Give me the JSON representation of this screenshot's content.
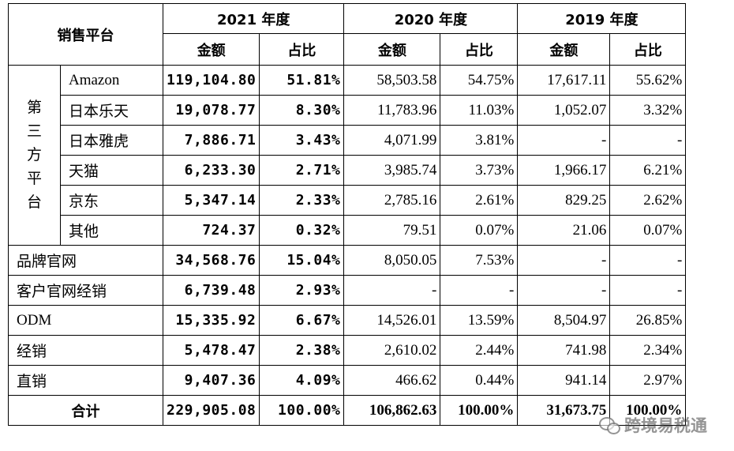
{
  "header": {
    "platform_label": "销售平台",
    "years": [
      "2021 年度",
      "2020 年度",
      "2019 年度"
    ],
    "amount_label": "金额",
    "ratio_label": "占比"
  },
  "third_party_group_label": "第三方平台",
  "rows": [
    {
      "name": "Amazon",
      "v2021": "119,104.80",
      "p2021": "51.81%",
      "v2020": "58,503.58",
      "p2020": "54.75%",
      "v2019": "17,617.11",
      "p2019": "55.62%"
    },
    {
      "name": "日本乐天",
      "v2021": "19,078.77",
      "p2021": "8.30%",
      "v2020": "11,783.96",
      "p2020": "11.03%",
      "v2019": "1,052.07",
      "p2019": "3.32%"
    },
    {
      "name": "日本雅虎",
      "v2021": "7,886.71",
      "p2021": "3.43%",
      "v2020": "4,071.99",
      "p2020": "3.81%",
      "v2019": "-",
      "p2019": "-"
    },
    {
      "name": "天猫",
      "v2021": "6,233.30",
      "p2021": "2.71%",
      "v2020": "3,985.74",
      "p2020": "3.73%",
      "v2019": "1,966.17",
      "p2019": "6.21%"
    },
    {
      "name": "京东",
      "v2021": "5,347.14",
      "p2021": "2.33%",
      "v2020": "2,785.16",
      "p2020": "2.61%",
      "v2019": "829.25",
      "p2019": "2.62%"
    },
    {
      "name": "其他",
      "v2021": "724.37",
      "p2021": "0.32%",
      "v2020": "79.51",
      "p2020": "0.07%",
      "v2019": "21.06",
      "p2019": "0.07%"
    },
    {
      "name": "品牌官网",
      "v2021": "34,568.76",
      "p2021": "15.04%",
      "v2020": "8,050.05",
      "p2020": "7.53%",
      "v2019": "-",
      "p2019": "-"
    },
    {
      "name": "客户官网经销",
      "v2021": "6,739.48",
      "p2021": "2.93%",
      "v2020": "-",
      "p2020": "-",
      "v2019": "-",
      "p2019": "-"
    },
    {
      "name": "ODM",
      "v2021": "15,335.92",
      "p2021": "6.67%",
      "v2020": "14,526.01",
      "p2020": "13.59%",
      "v2019": "8,504.97",
      "p2019": "26.85%"
    },
    {
      "name": "经销",
      "v2021": "5,478.47",
      "p2021": "2.38%",
      "v2020": "2,610.02",
      "p2020": "2.44%",
      "v2019": "741.98",
      "p2019": "2.34%"
    },
    {
      "name": "直销",
      "v2021": "9,407.36",
      "p2021": "4.09%",
      "v2020": "466.62",
      "p2020": "0.44%",
      "v2019": "941.14",
      "p2019": "2.97%"
    }
  ],
  "total": {
    "name": "合计",
    "v2021": "229,905.08",
    "p2021": "100.00%",
    "v2020": "106,862.63",
    "p2020": "100.00%",
    "v2019": "31,673.75",
    "p2019": "100.00%"
  },
  "watermark": "跨境易税通"
}
